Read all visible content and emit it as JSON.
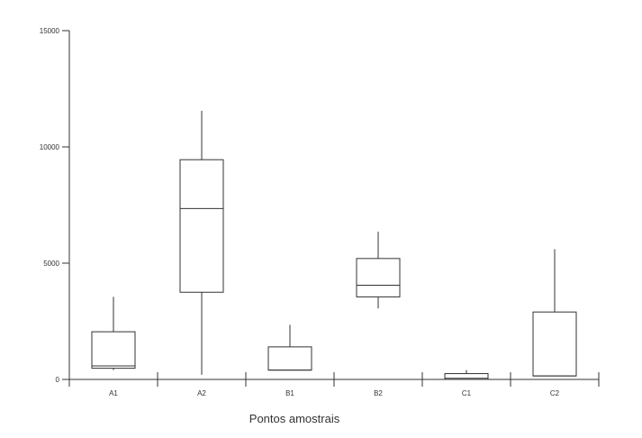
{
  "chart_data": {
    "type": "box",
    "title": "",
    "xlabel": "Pontos amostrais",
    "ylabel": "",
    "ylim": [
      0,
      15000
    ],
    "yticks": [
      0,
      5000,
      10000,
      15000
    ],
    "grid": false,
    "legend": "none",
    "categories": [
      "A1",
      "A2",
      "B1",
      "B2",
      "C1",
      "C2"
    ],
    "boxes": [
      {
        "category": "A1",
        "min": 400,
        "q1": 480,
        "median": 580,
        "q3": 2050,
        "max": 3550
      },
      {
        "category": "A2",
        "min": 200,
        "q1": 3750,
        "median": 7350,
        "q3": 9450,
        "max": 11550
      },
      {
        "category": "B1",
        "min": 400,
        "q1": 400,
        "median": 400,
        "q3": 1400,
        "max": 2350
      },
      {
        "category": "B2",
        "min": 3050,
        "q1": 3550,
        "median": 4050,
        "q3": 5200,
        "max": 6350
      },
      {
        "category": "C1",
        "min": 0,
        "q1": 0,
        "median": 50,
        "q3": 250,
        "max": 400
      },
      {
        "category": "C2",
        "min": 150,
        "q1": 150,
        "median": 150,
        "q3": 2900,
        "max": 5600
      }
    ],
    "colors": {
      "line": "#333333",
      "fill": "#ffffff",
      "text": "#333333"
    }
  }
}
